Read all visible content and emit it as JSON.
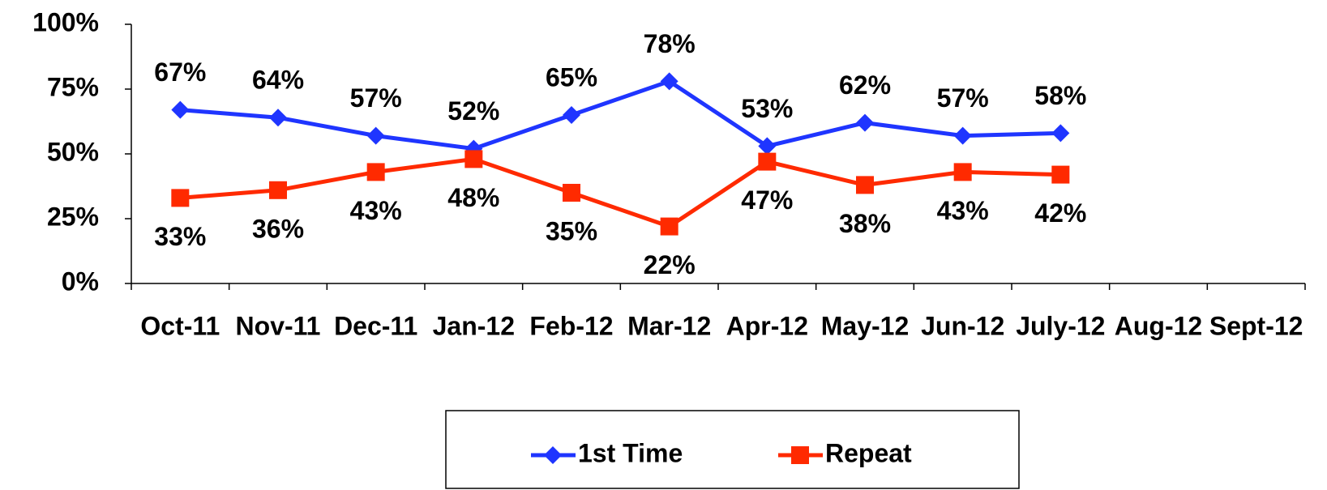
{
  "chart_data": {
    "type": "line",
    "categories": [
      "Oct-11",
      "Nov-11",
      "Dec-11",
      "Jan-12",
      "Feb-12",
      "Mar-12",
      "Apr-12",
      "May-12",
      "Jun-12",
      "July-12",
      "Aug-12",
      "Sept-12"
    ],
    "series": [
      {
        "name": "1st Time",
        "color": "#1f35ff",
        "marker": "diamond",
        "values": [
          67,
          64,
          57,
          52,
          65,
          78,
          53,
          62,
          57,
          58,
          null,
          null
        ],
        "value_labels": [
          "67%",
          "64%",
          "57%",
          "52%",
          "65%",
          "78%",
          "53%",
          "62%",
          "57%",
          "58%",
          null,
          null
        ]
      },
      {
        "name": "Repeat",
        "color": "#ff2a00",
        "marker": "square",
        "values": [
          33,
          36,
          43,
          48,
          35,
          22,
          47,
          38,
          43,
          42,
          null,
          null
        ],
        "value_labels": [
          "33%",
          "36%",
          "43%",
          "48%",
          "35%",
          "22%",
          "47%",
          "38%",
          "43%",
          "42%",
          null,
          null
        ]
      }
    ],
    "ylim": [
      0,
      100
    ],
    "yticks": [
      {
        "value": 0,
        "label": "0%"
      },
      {
        "value": 25,
        "label": "25%"
      },
      {
        "value": 50,
        "label": "50%"
      },
      {
        "value": 75,
        "label": "75%"
      },
      {
        "value": 100,
        "label": "100%"
      }
    ],
    "grid": false,
    "legend": "bottom"
  }
}
